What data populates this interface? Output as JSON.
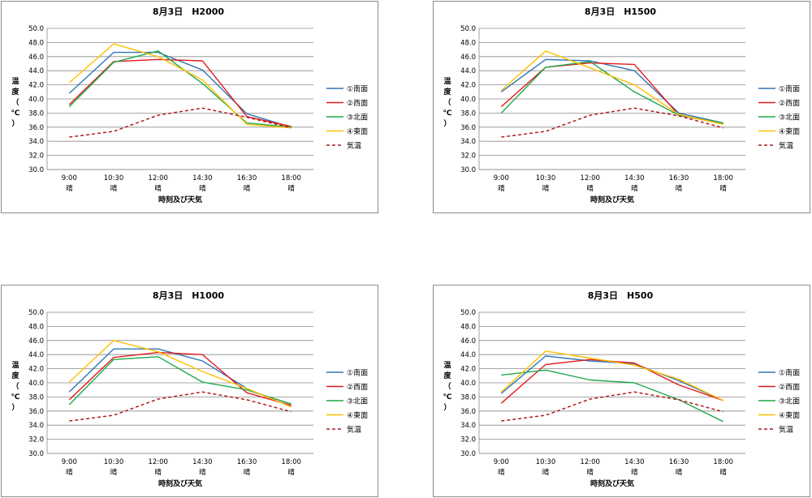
{
  "chart_data": [
    {
      "type": "line",
      "title": "8月3日　H2000",
      "categories": [
        "9:00",
        "10:30",
        "12:00",
        "14:30",
        "16:30",
        "18:00"
      ],
      "weather": [
        "晴",
        "晴",
        "晴",
        "晴",
        "晴",
        "晴"
      ],
      "xlabel": "時刻及び天気",
      "ylabel": [
        "温",
        "度",
        "（",
        "℃",
        "）"
      ],
      "ylim": [
        30.0,
        50.0
      ],
      "yticks": [
        "30.0",
        "32.0",
        "34.0",
        "36.0",
        "38.0",
        "40.0",
        "42.0",
        "44.0",
        "46.0",
        "48.0",
        "50.0"
      ],
      "grid": true,
      "legend": "right",
      "series": [
        {
          "name": "①南面",
          "color": "#2e75b6",
          "dash": false,
          "values": [
            40.8,
            46.6,
            46.6,
            44.1,
            37.9,
            36.0
          ]
        },
        {
          "name": "②西面",
          "color": "#e41a1c",
          "dash": false,
          "values": [
            39.2,
            45.3,
            45.6,
            45.4,
            37.5,
            36.1
          ]
        },
        {
          "name": "③北面",
          "color": "#1fa84a",
          "dash": false,
          "values": [
            38.9,
            45.2,
            46.8,
            42.2,
            36.6,
            36.0
          ]
        },
        {
          "name": "④東面",
          "color": "#ffc000",
          "dash": false,
          "values": [
            42.3,
            47.8,
            46.0,
            42.7,
            36.4,
            35.9
          ]
        },
        {
          "name": "気温",
          "color": "#b01c1c",
          "dash": true,
          "values": [
            34.6,
            35.4,
            37.7,
            38.7,
            37.4,
            35.9
          ]
        }
      ]
    },
    {
      "type": "line",
      "title": "8月3日　H1500",
      "categories": [
        "9:00",
        "10:30",
        "12:00",
        "14:30",
        "16:30",
        "18:00"
      ],
      "weather": [
        "晴",
        "晴",
        "晴",
        "晴",
        "晴",
        "晴"
      ],
      "xlabel": "時刻及び天気",
      "ylabel": [
        "温",
        "度",
        "（",
        "℃",
        "）"
      ],
      "ylim": [
        30.0,
        50.0
      ],
      "yticks": [
        "30.0",
        "32.0",
        "34.0",
        "36.0",
        "38.0",
        "40.0",
        "42.0",
        "44.0",
        "46.0",
        "48.0",
        "50.0"
      ],
      "grid": true,
      "legend": "right",
      "series": [
        {
          "name": "①南面",
          "color": "#2e75b6",
          "dash": false,
          "values": [
            41.0,
            45.6,
            45.4,
            44.0,
            38.0,
            36.6
          ]
        },
        {
          "name": "②西面",
          "color": "#e41a1c",
          "dash": false,
          "values": [
            38.9,
            44.5,
            45.1,
            44.9,
            37.7,
            36.5
          ]
        },
        {
          "name": "③北面",
          "color": "#1fa84a",
          "dash": false,
          "values": [
            38.0,
            44.5,
            45.3,
            41.0,
            37.7,
            36.6
          ]
        },
        {
          "name": "④東面",
          "color": "#ffc000",
          "dash": false,
          "values": [
            41.2,
            46.8,
            44.4,
            42.0,
            37.8,
            36.4
          ]
        },
        {
          "name": "気温",
          "color": "#b01c1c",
          "dash": true,
          "values": [
            34.6,
            35.4,
            37.7,
            38.7,
            37.6,
            35.9
          ]
        }
      ]
    },
    {
      "type": "line",
      "title": "8月3日　H1000",
      "categories": [
        "9:00",
        "10:30",
        "12:00",
        "14:30",
        "16:30",
        "18:00"
      ],
      "weather": [
        "晴",
        "晴",
        "晴",
        "晴",
        "晴",
        "晴"
      ],
      "xlabel": "時刻及び天気",
      "ylabel": [
        "温",
        "度",
        "（",
        "℃",
        "）"
      ],
      "ylim": [
        30.0,
        50.0
      ],
      "yticks": [
        "30.0",
        "32.0",
        "34.0",
        "36.0",
        "38.0",
        "40.0",
        "42.0",
        "44.0",
        "46.0",
        "48.0",
        "50.0"
      ],
      "grid": true,
      "legend": "right",
      "series": [
        {
          "name": "①南面",
          "color": "#2e75b6",
          "dash": false,
          "values": [
            38.7,
            44.8,
            44.8,
            43.1,
            39.2,
            36.6
          ]
        },
        {
          "name": "②西面",
          "color": "#e41a1c",
          "dash": false,
          "values": [
            37.6,
            43.6,
            44.3,
            44.0,
            38.6,
            36.8
          ]
        },
        {
          "name": "③北面",
          "color": "#1fa84a",
          "dash": false,
          "values": [
            36.9,
            43.3,
            43.7,
            40.1,
            39.0,
            37.0
          ]
        },
        {
          "name": "④東面",
          "color": "#ffc000",
          "dash": false,
          "values": [
            40.1,
            46.0,
            44.4,
            41.6,
            39.2,
            36.6
          ]
        },
        {
          "name": "気温",
          "color": "#b01c1c",
          "dash": true,
          "values": [
            34.6,
            35.4,
            37.7,
            38.7,
            37.6,
            35.9
          ]
        }
      ]
    },
    {
      "type": "line",
      "title": "8月3日　H500",
      "categories": [
        "9:00",
        "10:30",
        "12:00",
        "14:30",
        "16:30",
        "18:00"
      ],
      "weather": [
        "晴",
        "晴",
        "晴",
        "晴",
        "晴",
        "晴"
      ],
      "xlabel": "時刻及び天気",
      "ylabel": [
        "温",
        "度",
        "（",
        "℃",
        "）"
      ],
      "ylim": [
        30.0,
        50.0
      ],
      "yticks": [
        "30.0",
        "32.0",
        "34.0",
        "36.0",
        "38.0",
        "40.0",
        "42.0",
        "44.0",
        "46.0",
        "48.0",
        "50.0"
      ],
      "grid": true,
      "legend": "right",
      "series": [
        {
          "name": "①南面",
          "color": "#2e75b6",
          "dash": false,
          "values": [
            38.5,
            43.8,
            43.1,
            42.7,
            40.3,
            37.5
          ]
        },
        {
          "name": "②西面",
          "color": "#e41a1c",
          "dash": false,
          "values": [
            37.1,
            42.6,
            43.3,
            42.8,
            39.7,
            37.5
          ]
        },
        {
          "name": "③北面",
          "color": "#1fa84a",
          "dash": false,
          "values": [
            41.1,
            41.8,
            40.4,
            40.0,
            37.6,
            34.5
          ]
        },
        {
          "name": "④東面",
          "color": "#ffc000",
          "dash": false,
          "values": [
            38.7,
            44.5,
            43.5,
            42.5,
            40.5,
            37.5
          ]
        },
        {
          "name": "気温",
          "color": "#b01c1c",
          "dash": true,
          "values": [
            34.6,
            35.4,
            37.7,
            38.7,
            37.6,
            35.9
          ]
        }
      ]
    }
  ]
}
